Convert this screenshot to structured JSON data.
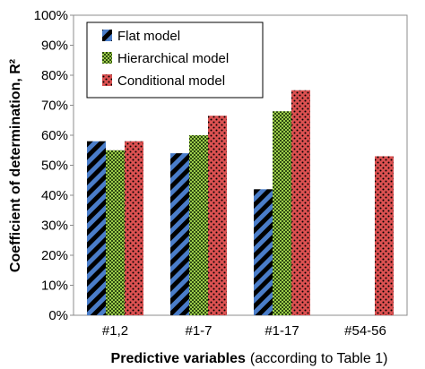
{
  "chart_data": {
    "type": "bar",
    "xlabel_bold": "Predictive variables",
    "xlabel_normal": "(according to Table 1)",
    "ylabel": "Coefficient of determination, R²",
    "ylim": [
      0,
      100
    ],
    "y_ticks": [
      "0%",
      "10%",
      "20%",
      "30%",
      "40%",
      "50%",
      "60%",
      "70%",
      "80%",
      "90%",
      "100%"
    ],
    "categories": [
      "#1,2",
      "#1-7",
      "#1-17",
      "#54-56"
    ],
    "series": [
      {
        "name": "Flat model",
        "values": [
          58,
          54,
          42,
          null
        ],
        "color": "#4a7dc9",
        "pattern": "diagonal-stripes-black"
      },
      {
        "name": "Hierarchical model",
        "values": [
          55,
          60,
          68,
          null
        ],
        "color": "#9bcb4a",
        "pattern": "checker-dark"
      },
      {
        "name": "Conditional model",
        "values": [
          58,
          66.5,
          75,
          53
        ],
        "color": "#dc5151",
        "pattern": "dots-black"
      }
    ],
    "legend_position": "top-left",
    "grid": false
  }
}
